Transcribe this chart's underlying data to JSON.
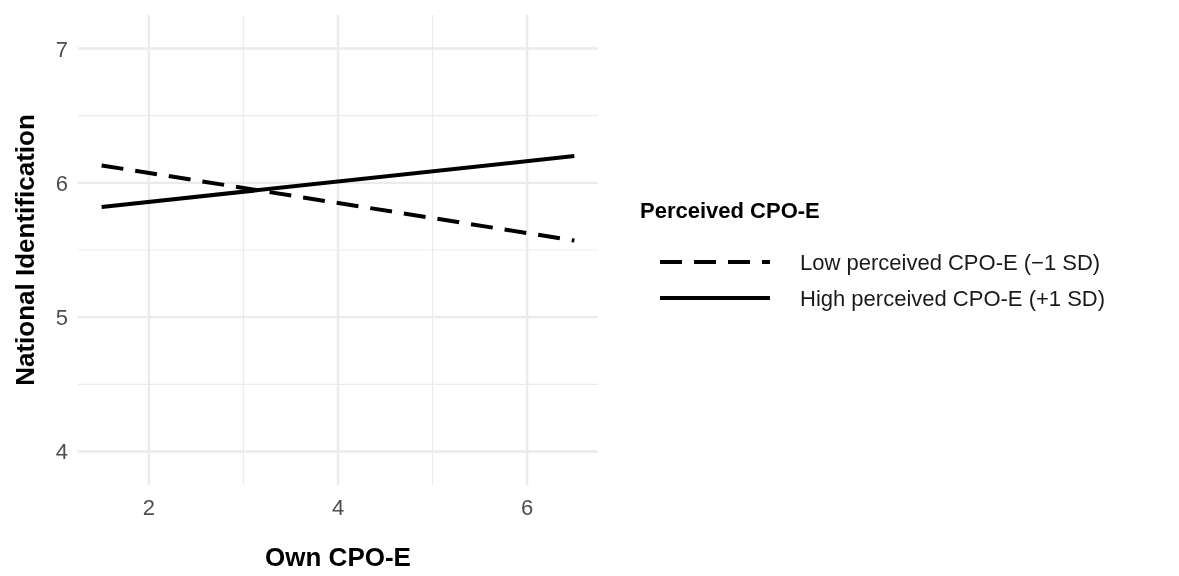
{
  "chart_data": {
    "type": "line",
    "xlabel": "Own CPO-E",
    "ylabel": "National Identification",
    "legend_title": "Perceived CPO-E",
    "x": [
      1.5,
      6.5
    ],
    "series": [
      {
        "name": "Low perceived CPO-E (−1 SD)",
        "color": "#000000",
        "values": [
          6.13,
          5.57
        ],
        "line_style": "dashed"
      },
      {
        "name": "High perceived CPO-E (+1 SD)",
        "color": "#000000",
        "values": [
          5.82,
          6.2
        ],
        "line_style": "solid"
      }
    ],
    "xlim": [
      1.25,
      6.75
    ],
    "ylim": [
      3.75,
      7.25
    ],
    "xticks": [
      2,
      4,
      6
    ],
    "yticks": [
      4,
      5,
      6,
      7
    ],
    "grid": true,
    "legend": "right",
    "marker": "none"
  }
}
